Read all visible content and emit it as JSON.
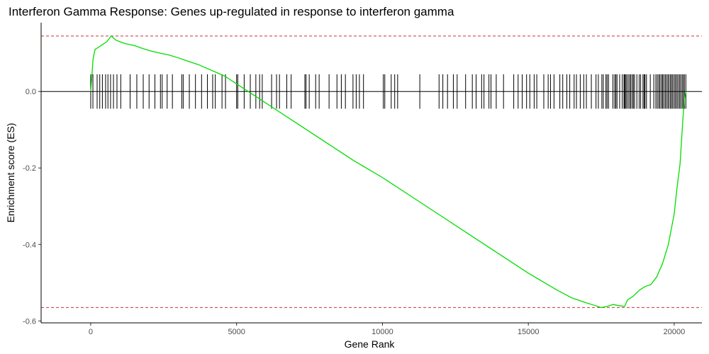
{
  "chart_data": {
    "type": "line",
    "title": "Interferon Gamma Response: Genes up-regulated in response to interferon gamma",
    "xlabel": "Gene Rank",
    "ylabel": "Enrichment score (ES)",
    "xlim": [
      -1700,
      20950
    ],
    "ylim": [
      -0.605,
      0.18
    ],
    "x_ticks": [
      0,
      5000,
      10000,
      15000,
      20000
    ],
    "x_tick_labels": [
      "0",
      "5000",
      "10000",
      "15000",
      "20000"
    ],
    "y_ticks": [
      -0.6,
      -0.4,
      -0.2,
      0.0
    ],
    "y_tick_labels": [
      "-0.6",
      "-0.4",
      "-0.2",
      "0.0"
    ],
    "grid": false,
    "series": [
      {
        "color": "#00dd00",
        "x": [
          0,
          30,
          80,
          150,
          250,
          350,
          450,
          550,
          650,
          700,
          750,
          850,
          1000,
          1200,
          1500,
          1800,
          2100,
          2400,
          2700,
          3000,
          3300,
          3500,
          3700,
          4000,
          4300,
          4600,
          5000,
          5500,
          6000,
          7000,
          8000,
          9000,
          10000,
          11000,
          12000,
          13000,
          14000,
          15000,
          16000,
          16500,
          17000,
          17300,
          17500,
          17700,
          17900,
          18100,
          18300,
          18400,
          18600,
          18800,
          19000,
          19200,
          19400,
          19600,
          19800,
          20000,
          20100,
          20200,
          20250,
          20300,
          20350,
          20400
        ],
        "y": [
          0.0,
          0.03,
          0.085,
          0.11,
          0.115,
          0.12,
          0.125,
          0.13,
          0.14,
          0.145,
          0.142,
          0.135,
          0.13,
          0.125,
          0.12,
          0.112,
          0.105,
          0.1,
          0.095,
          0.088,
          0.08,
          0.075,
          0.07,
          0.06,
          0.05,
          0.04,
          0.02,
          -0.005,
          -0.03,
          -0.08,
          -0.13,
          -0.18,
          -0.225,
          -0.275,
          -0.325,
          -0.375,
          -0.425,
          -0.475,
          -0.52,
          -0.54,
          -0.553,
          -0.56,
          -0.565,
          -0.562,
          -0.557,
          -0.56,
          -0.562,
          -0.545,
          -0.535,
          -0.52,
          -0.51,
          -0.505,
          -0.485,
          -0.45,
          -0.4,
          -0.32,
          -0.25,
          -0.19,
          -0.13,
          -0.07,
          -0.02,
          0.0
        ]
      }
    ],
    "hits": [
      0,
      75,
      220,
      310,
      400,
      510,
      590,
      680,
      780,
      900,
      1030,
      1350,
      1580,
      1800,
      2000,
      2200,
      2390,
      2450,
      2620,
      2800,
      3120,
      3170,
      3380,
      3590,
      3800,
      4000,
      4180,
      4270,
      4500,
      4620,
      5000,
      5040,
      5260,
      5470,
      5660,
      5790,
      5880,
      6200,
      6370,
      6470,
      6720,
      6870,
      7340,
      7380,
      7490,
      7710,
      7830,
      8170,
      8440,
      8590,
      8730,
      8990,
      9100,
      9210,
      9350,
      10030,
      10080,
      10300,
      10420,
      10520,
      11280,
      11940,
      12070,
      12230,
      12430,
      12560,
      12850,
      13080,
      13210,
      13400,
      13480,
      13650,
      13720,
      13900,
      14150,
      14500,
      14650,
      14790,
      14940,
      15050,
      15200,
      15290,
      15530,
      15680,
      15760,
      15880,
      16080,
      16180,
      16320,
      16420,
      16570,
      16650,
      16780,
      16900,
      16990,
      17160,
      17320,
      17400,
      17520,
      17570,
      17660,
      17700,
      17750,
      17900,
      17960,
      18000,
      18040,
      18130,
      18220,
      18280,
      18300,
      18330,
      18370,
      18420,
      18470,
      18510,
      18560,
      18600,
      18640,
      18720,
      18800,
      18850,
      18930,
      18970,
      19000,
      19050,
      19180,
      19300,
      19370,
      19420,
      19470,
      19510,
      19560,
      19600,
      19640,
      19690,
      19730,
      19780,
      19820,
      19870,
      19910,
      19950,
      20000,
      20040,
      20090,
      20130,
      20180,
      20220,
      20270,
      20310,
      20350,
      20400
    ],
    "hit_band": [
      -0.045,
      0.045
    ],
    "hit_color": "#000000",
    "baseline": 0.0,
    "reference_lines": [
      {
        "y": 0.145,
        "color": "#cc3333",
        "style": "dashed"
      },
      {
        "y": -0.565,
        "color": "#cc3333",
        "style": "dashed"
      }
    ],
    "legend": "none"
  }
}
